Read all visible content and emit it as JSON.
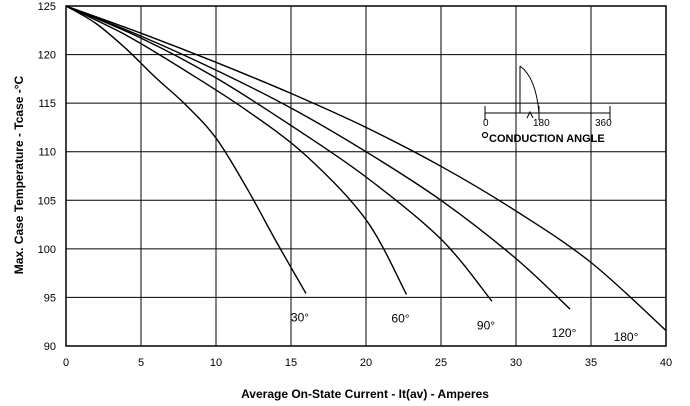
{
  "chart_data": {
    "type": "line",
    "xlabel": "Average On-State Current - It(av) - Amperes",
    "ylabel": "Max. Case Temperature - Tcase -°C",
    "xlim": [
      0,
      40
    ],
    "ylim": [
      90,
      125
    ],
    "x_ticks": [
      0,
      5,
      10,
      15,
      20,
      25,
      30,
      35,
      40
    ],
    "y_ticks": [
      90,
      95,
      100,
      105,
      110,
      115,
      120,
      125
    ],
    "grid": true,
    "series": [
      {
        "name": "30°",
        "points": [
          [
            0,
            125
          ],
          [
            2,
            123.2
          ],
          [
            4,
            120.6
          ],
          [
            6,
            117.6
          ],
          [
            8,
            114.8
          ],
          [
            10,
            111.4
          ],
          [
            12,
            106.4
          ],
          [
            14,
            100.8
          ],
          [
            16,
            95.4
          ]
        ]
      },
      {
        "name": "60°",
        "points": [
          [
            0,
            125
          ],
          [
            4,
            122
          ],
          [
            8,
            118.3
          ],
          [
            12,
            114.3
          ],
          [
            16,
            109.6
          ],
          [
            20,
            103
          ],
          [
            22.7,
            95.3
          ]
        ]
      },
      {
        "name": "90°",
        "points": [
          [
            0,
            125
          ],
          [
            5,
            121.7
          ],
          [
            10,
            117.6
          ],
          [
            15,
            112.7
          ],
          [
            20,
            107.4
          ],
          [
            25,
            101
          ],
          [
            28.4,
            94.6
          ]
        ]
      },
      {
        "name": "120°",
        "points": [
          [
            0,
            125
          ],
          [
            5,
            121.9
          ],
          [
            10,
            118.4
          ],
          [
            15,
            114.5
          ],
          [
            20,
            110
          ],
          [
            25,
            105
          ],
          [
            30,
            99
          ],
          [
            33.6,
            93.8
          ]
        ]
      },
      {
        "name": "180°",
        "points": [
          [
            0,
            125
          ],
          [
            5,
            122.2
          ],
          [
            10,
            119.2
          ],
          [
            15,
            116
          ],
          [
            20,
            112.5
          ],
          [
            25,
            108.5
          ],
          [
            30,
            103.9
          ],
          [
            35,
            98.6
          ],
          [
            40,
            91.6
          ]
        ]
      }
    ],
    "inset": {
      "scale_labels": [
        "0",
        "180",
        "360"
      ],
      "caption": "CONDUCTION ANGLE"
    }
  }
}
